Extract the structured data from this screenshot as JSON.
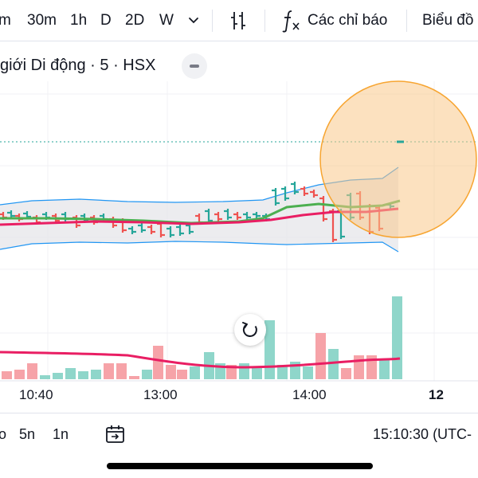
{
  "toolbar": {
    "intervals": [
      "m",
      "30m",
      "1h",
      "D",
      "2D",
      "W"
    ],
    "indicators_label": "Các chỉ báo",
    "chart_type_label": "Biểu đồ"
  },
  "legend": {
    "title": "giới Di động · 5 · HSX"
  },
  "time_axis": {
    "labels": [
      "10:40",
      "13:00",
      "14:00",
      "12"
    ]
  },
  "bottom_bar": {
    "ranges": [
      "o",
      "5n",
      "1n"
    ],
    "clock": "15:10:30 (UTC-"
  },
  "colors": {
    "up": "#26a69a",
    "down": "#ef5350",
    "vol_up": "#8fd6ca",
    "vol_down": "#f6a3a8",
    "ma_red": "#e91e63",
    "ma_green": "#4caf50",
    "band": "#2196f3",
    "highlight_fill": "#f9c88a",
    "highlight_stroke": "#f7a531"
  }
}
